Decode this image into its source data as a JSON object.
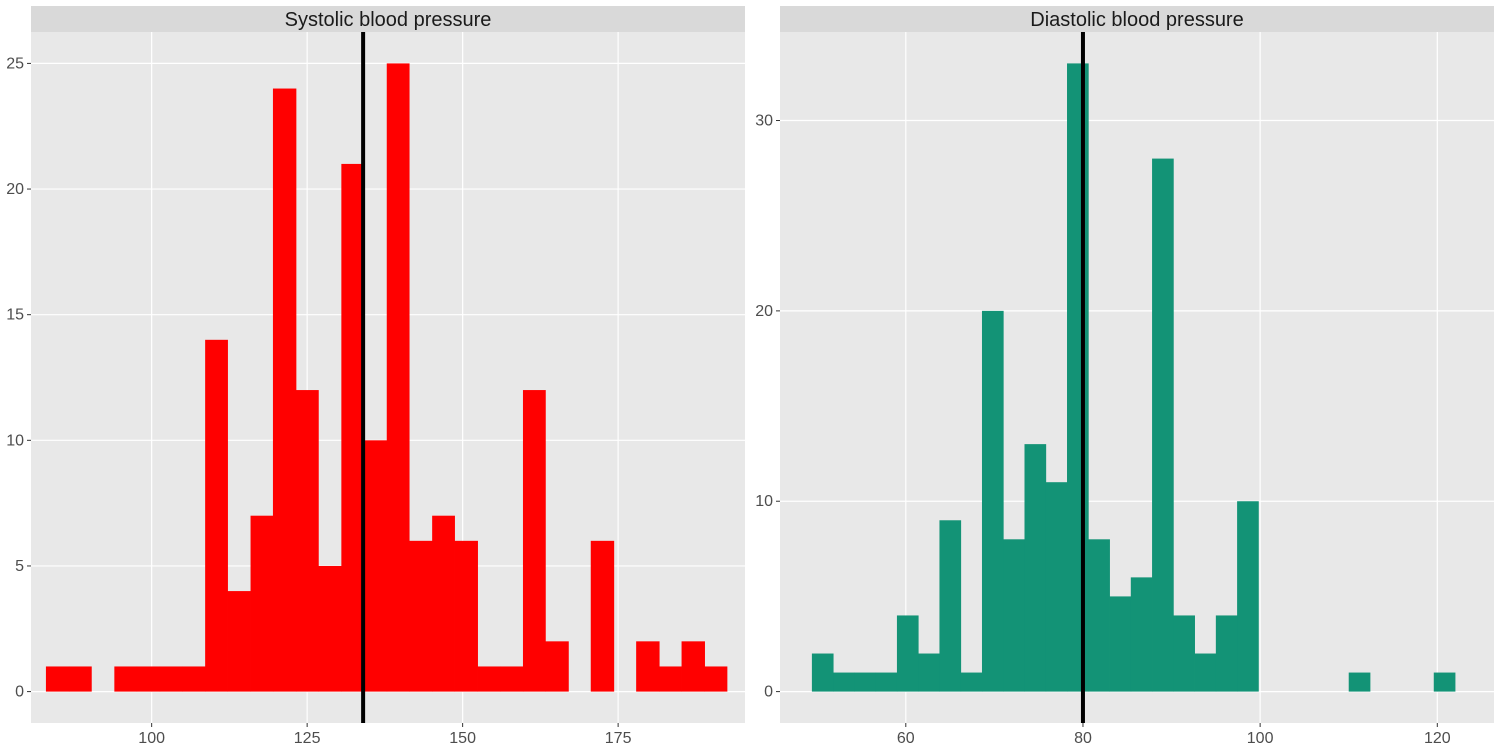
{
  "chart_data": [
    {
      "type": "bar",
      "title": "Systolic blood pressure",
      "xlabel": "",
      "ylabel": "",
      "fill": "#ff0000",
      "xlim": [
        80.6,
        195.4
      ],
      "ylim": [
        -1.25,
        26.25
      ],
      "xticks": [
        100,
        125,
        150,
        175
      ],
      "yticks": [
        0,
        5,
        10,
        15,
        20,
        25
      ],
      "reference_line": 134,
      "bins": [
        {
          "x0": 83.0,
          "x1": 86.7,
          "count": 1
        },
        {
          "x0": 86.7,
          "x1": 90.3,
          "count": 1
        },
        {
          "x0": 90.3,
          "x1": 94.0,
          "count": 0
        },
        {
          "x0": 94.0,
          "x1": 97.6,
          "count": 1
        },
        {
          "x0": 97.6,
          "x1": 101.3,
          "count": 1
        },
        {
          "x0": 101.3,
          "x1": 104.9,
          "count": 1
        },
        {
          "x0": 104.9,
          "x1": 108.6,
          "count": 1
        },
        {
          "x0": 108.6,
          "x1": 112.2,
          "count": 14
        },
        {
          "x0": 112.2,
          "x1": 115.9,
          "count": 4
        },
        {
          "x0": 115.9,
          "x1": 119.5,
          "count": 7
        },
        {
          "x0": 119.5,
          "x1": 123.2,
          "count": 24
        },
        {
          "x0": 123.2,
          "x1": 126.8,
          "count": 12
        },
        {
          "x0": 126.8,
          "x1": 130.5,
          "count": 5
        },
        {
          "x0": 130.5,
          "x1": 134.1,
          "count": 21
        },
        {
          "x0": 134.1,
          "x1": 137.8,
          "count": 10
        },
        {
          "x0": 137.8,
          "x1": 141.4,
          "count": 25
        },
        {
          "x0": 141.4,
          "x1": 145.1,
          "count": 6
        },
        {
          "x0": 145.1,
          "x1": 148.7,
          "count": 7
        },
        {
          "x0": 148.7,
          "x1": 152.4,
          "count": 6
        },
        {
          "x0": 152.4,
          "x1": 156.0,
          "count": 1
        },
        {
          "x0": 156.0,
          "x1": 159.7,
          "count": 1
        },
        {
          "x0": 159.7,
          "x1": 163.3,
          "count": 12
        },
        {
          "x0": 163.3,
          "x1": 167.0,
          "count": 2
        },
        {
          "x0": 167.0,
          "x1": 170.6,
          "count": 0
        },
        {
          "x0": 170.6,
          "x1": 174.3,
          "count": 6
        },
        {
          "x0": 174.3,
          "x1": 177.9,
          "count": 0
        },
        {
          "x0": 177.9,
          "x1": 181.6,
          "count": 2
        },
        {
          "x0": 181.6,
          "x1": 185.2,
          "count": 1
        },
        {
          "x0": 185.2,
          "x1": 188.9,
          "count": 2
        },
        {
          "x0": 188.9,
          "x1": 192.5,
          "count": 1
        }
      ]
    },
    {
      "type": "bar",
      "title": "Diastolic blood pressure",
      "xlabel": "",
      "ylabel": "",
      "fill": "#139376",
      "xlim": [
        45.8,
        126.4
      ],
      "ylim": [
        -1.65,
        34.65
      ],
      "xticks": [
        60,
        80,
        100,
        120
      ],
      "yticks": [
        0,
        10,
        20,
        30
      ],
      "reference_line": 80,
      "bins": [
        {
          "x0": 49.4,
          "x1": 51.8,
          "count": 2
        },
        {
          "x0": 51.8,
          "x1": 54.2,
          "count": 1
        },
        {
          "x0": 54.2,
          "x1": 56.6,
          "count": 1
        },
        {
          "x0": 56.6,
          "x1": 59.0,
          "count": 1
        },
        {
          "x0": 59.0,
          "x1": 61.4,
          "count": 4
        },
        {
          "x0": 61.4,
          "x1": 63.8,
          "count": 2
        },
        {
          "x0": 63.8,
          "x1": 66.2,
          "count": 9
        },
        {
          "x0": 66.2,
          "x1": 68.6,
          "count": 1
        },
        {
          "x0": 68.6,
          "x1": 71.0,
          "count": 20
        },
        {
          "x0": 71.0,
          "x1": 73.4,
          "count": 8
        },
        {
          "x0": 73.4,
          "x1": 75.8,
          "count": 13
        },
        {
          "x0": 75.8,
          "x1": 78.2,
          "count": 11
        },
        {
          "x0": 78.2,
          "x1": 80.6,
          "count": 33
        },
        {
          "x0": 80.6,
          "x1": 83.0,
          "count": 8
        },
        {
          "x0": 83.0,
          "x1": 85.4,
          "count": 5
        },
        {
          "x0": 85.4,
          "x1": 87.8,
          "count": 6
        },
        {
          "x0": 87.8,
          "x1": 90.2,
          "count": 28
        },
        {
          "x0": 90.2,
          "x1": 92.6,
          "count": 4
        },
        {
          "x0": 92.6,
          "x1": 95.0,
          "count": 2
        },
        {
          "x0": 95.0,
          "x1": 97.4,
          "count": 4
        },
        {
          "x0": 97.4,
          "x1": 99.8,
          "count": 10
        },
        {
          "x0": 110.0,
          "x1": 112.4,
          "count": 1
        },
        {
          "x0": 119.6,
          "x1": 122.0,
          "count": 1
        }
      ]
    }
  ],
  "colors": {
    "panel_background": "#e8e8e8",
    "strip_background": "#d9d9d9",
    "grid_major": "#ffffff",
    "reference_line": "#000000"
  }
}
